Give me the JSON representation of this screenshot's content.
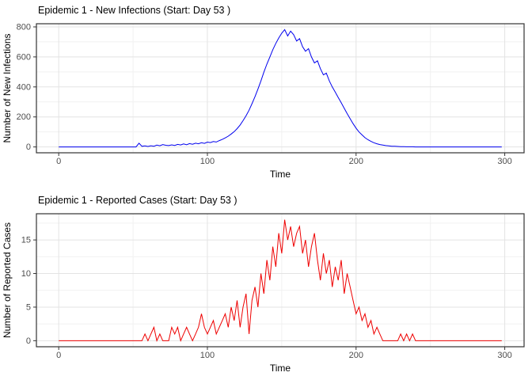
{
  "page": {
    "background": "#FFFFFF"
  },
  "theme": {
    "grid_major": "#E3E3E3",
    "grid_minor": "#F1F1F1",
    "panel_border": "#333333",
    "tick_mark_color": "#333333",
    "tick_label_color": "#4D4D4D",
    "title_color": "#000000"
  },
  "chart_data": [
    {
      "type": "line",
      "title": "Epidemic 1 - New Infections (Start: Day 53 )",
      "xlabel": "Time",
      "ylabel": "Number of New Infections",
      "line_color": "#0000EE",
      "legend": "none",
      "grid": "on",
      "x_start": 0,
      "x_step": 2,
      "xlim": [
        -15,
        313
      ],
      "ylim": [
        -39,
        821
      ],
      "x_ticks": [
        0,
        100,
        200,
        300
      ],
      "x_minor_ticks": [
        50,
        150,
        250
      ],
      "y_ticks": [
        0,
        200,
        400,
        600,
        800
      ],
      "y_minor_ticks": [
        100,
        300,
        500,
        700
      ],
      "values": [
        0,
        0,
        0,
        0,
        0,
        0,
        0,
        0,
        0,
        0,
        0,
        0,
        0,
        0,
        0,
        0,
        0,
        0,
        0,
        0,
        0,
        0,
        0,
        0,
        0,
        0,
        0,
        25,
        4,
        7,
        3,
        8,
        5,
        12,
        8,
        16,
        11,
        9,
        14,
        10,
        17,
        13,
        20,
        15,
        22,
        18,
        25,
        21,
        28,
        24,
        32,
        29,
        36,
        33,
        42,
        50,
        60,
        72,
        86,
        102,
        122,
        146,
        175,
        208,
        245,
        288,
        335,
        385,
        440,
        498,
        552,
        600,
        648,
        690,
        726,
        758,
        782,
        740,
        772,
        748,
        706,
        722,
        668,
        638,
        655,
        600,
        560,
        574,
        522,
        480,
        492,
        440,
        400,
        365,
        330,
        295,
        258,
        222,
        188,
        155,
        125,
        100,
        80,
        62,
        48,
        37,
        28,
        21,
        16,
        12,
        9,
        7,
        5,
        4,
        3,
        2,
        2,
        1,
        1,
        1,
        0,
        0,
        0,
        0,
        0,
        0,
        0,
        0,
        0,
        0,
        0,
        0,
        0,
        0,
        0,
        0,
        0,
        0,
        0,
        0,
        0,
        0,
        0,
        0,
        0,
        0,
        0,
        0,
        0,
        0
      ]
    },
    {
      "type": "line",
      "title": "Epidemic 1 - Reported Cases (Start: Day 53 )",
      "xlabel": "Time",
      "ylabel": "Number of Reported Cases",
      "line_color": "#EE0000",
      "legend": "none",
      "grid": "on",
      "x_start": 0,
      "x_step": 2,
      "xlim": [
        -15,
        313
      ],
      "ylim": [
        -0.9,
        18.9
      ],
      "x_ticks": [
        0,
        100,
        200,
        300
      ],
      "x_minor_ticks": [
        50,
        150,
        250
      ],
      "y_ticks": [
        0,
        5,
        10,
        15
      ],
      "y_minor_ticks": [
        2.5,
        7.5,
        12.5,
        17.5
      ],
      "values": [
        0,
        0,
        0,
        0,
        0,
        0,
        0,
        0,
        0,
        0,
        0,
        0,
        0,
        0,
        0,
        0,
        0,
        0,
        0,
        0,
        0,
        0,
        0,
        0,
        0,
        0,
        0,
        0,
        0,
        1,
        0,
        1,
        2,
        0,
        1,
        0,
        0,
        0,
        2,
        1,
        2,
        0,
        1,
        2,
        1,
        0,
        1,
        2,
        4,
        2,
        1,
        2,
        3,
        1,
        2,
        3,
        4,
        2,
        5,
        3,
        6,
        2,
        5,
        7,
        1,
        6,
        8,
        5,
        10,
        7,
        12,
        9,
        14,
        11,
        16,
        13,
        18,
        15,
        17,
        14,
        16,
        17,
        13,
        15,
        11,
        14,
        16,
        12,
        9,
        13,
        10,
        12,
        8,
        11,
        9,
        12,
        7,
        10,
        8,
        6,
        4,
        5,
        3,
        4,
        2,
        3,
        1,
        2,
        1,
        0,
        0,
        0,
        0,
        0,
        0,
        1,
        0,
        1,
        0,
        1,
        0,
        0,
        0,
        0,
        0,
        0,
        0,
        0,
        0,
        0,
        0,
        0,
        0,
        0,
        0,
        0,
        0,
        0,
        0,
        0,
        0,
        0,
        0,
        0,
        0,
        0,
        0,
        0,
        0,
        0
      ]
    }
  ]
}
